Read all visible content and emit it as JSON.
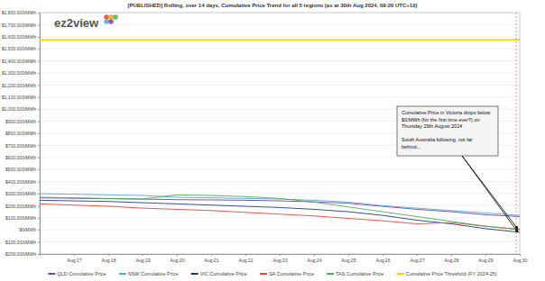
{
  "chart_data": {
    "type": "line",
    "title": "[PUBLISHED] Rolling, over 14 days, Cumulative Price Trend for all 5 regions (as at 30th Aug 2024, 09:20 UTC+10)",
    "logo": "ez2view",
    "categories": [
      null,
      "Aug 17",
      "Aug 18",
      "Aug 19",
      "Aug 20",
      "Aug 21",
      "Aug 22",
      "Aug 23",
      "Aug 24",
      "Aug 25",
      "Aug 26",
      "Aug 27",
      "Aug 28",
      "Aug 29",
      "Aug 30"
    ],
    "series": [
      {
        "name": "QLD Cumulative Price",
        "color": "#7b3fa0",
        "values": [
          265000,
          262000,
          258000,
          255000,
          250000,
          248000,
          245000,
          240000,
          232000,
          220000,
          195000,
          170000,
          150000,
          125000,
          110000
        ]
      },
      {
        "name": "NSW Cumulative Price",
        "color": "#4fa8e0",
        "values": [
          300000,
          295000,
          290000,
          285000,
          270000,
          265000,
          260000,
          255000,
          245000,
          230000,
          200000,
          180000,
          160000,
          140000,
          120000
        ]
      },
      {
        "name": "VIC Cumulative Price",
        "color": "#1f3b8c",
        "values": [
          245000,
          240000,
          235000,
          225000,
          215000,
          205000,
          195000,
          185000,
          170000,
          150000,
          120000,
          80000,
          50000,
          10000,
          -20000
        ]
      },
      {
        "name": "SA Cumulative Price",
        "color": "#e8453c",
        "values": [
          215000,
          205000,
          195000,
          180000,
          170000,
          160000,
          145000,
          130000,
          115000,
          95000,
          75000,
          50000,
          60000,
          30000,
          5000
        ]
      },
      {
        "name": "TAS Cumulative Price",
        "color": "#4caf50",
        "values": [
          270000,
          265000,
          260000,
          255000,
          290000,
          285000,
          275000,
          260000,
          230000,
          190000,
          150000,
          110000,
          70000,
          30000,
          0
        ]
      },
      {
        "name": "Cumulative Price Threshold (FY 2024-25)",
        "color": "#f2d000",
        "values": [
          1573700,
          1573700,
          1573700,
          1573700,
          1573700,
          1573700,
          1573700,
          1573700,
          1573700,
          1573700,
          1573700,
          1573700,
          1573700,
          1573700,
          1573700
        ]
      }
    ],
    "ylim": [
      -200000,
      1800000
    ],
    "yticks": [
      {
        "value": -200000,
        "label": "-$200,000/MWh"
      },
      {
        "value": -100000,
        "label": "-$100,000/MWh"
      },
      {
        "value": 0,
        "label": "$0/MWh"
      },
      {
        "value": 100000,
        "label": "$100,000/MWh"
      },
      {
        "value": 200000,
        "label": "$200,000/MWh"
      },
      {
        "value": 300000,
        "label": "$300,000/MWh"
      },
      {
        "value": 400000,
        "label": "$400,000/MWh"
      },
      {
        "value": 500000,
        "label": "$500,000/MWh"
      },
      {
        "value": 600000,
        "label": "$600,000/MWh"
      },
      {
        "value": 700000,
        "label": "$700,000/MWh"
      },
      {
        "value": 800000,
        "label": "$800,000/MWh"
      },
      {
        "value": 900000,
        "label": "$900,000/MWh"
      },
      {
        "value": 1000000,
        "label": "$1,000,000/MWh"
      },
      {
        "value": 1100000,
        "label": "$1,100,000/MWh"
      },
      {
        "value": 1200000,
        "label": "$1,200,000/MWh"
      },
      {
        "value": 1300000,
        "label": "$1,300,000/MWh"
      },
      {
        "value": 1400000,
        "label": "$1,400,000/MWh"
      },
      {
        "value": 1500000,
        "label": "$1,500,000/MWh"
      },
      {
        "value": 1600000,
        "label": "$1,600,000/MWh"
      },
      {
        "value": 1700000,
        "label": "$1,700,000/MWh"
      },
      {
        "value": 1800000,
        "label": "$1,800,000/MWh"
      }
    ],
    "grid": true,
    "legend": "bottom",
    "annotation": [
      [
        "Cumulative Price in Victoria drops below",
        "$0/MWh (for the first time ever?) on",
        "Thursday 29th August 2024"
      ],
      [
        "South Australia following, not far",
        "behind..."
      ]
    ]
  }
}
